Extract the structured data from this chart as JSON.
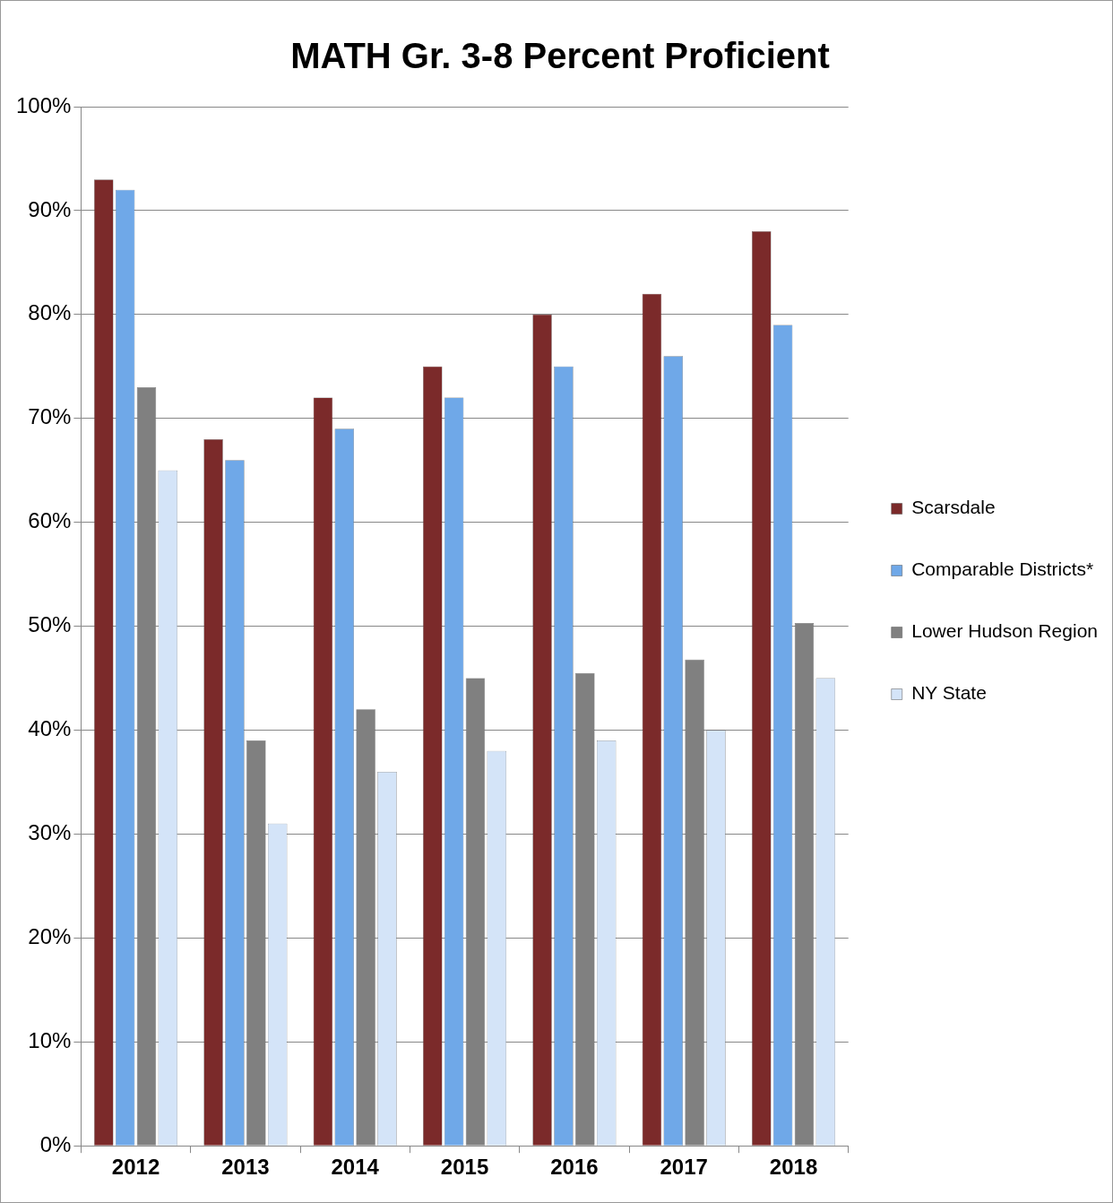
{
  "chart_data": {
    "type": "bar",
    "title": "MATH Gr. 3-8 Percent Proficient",
    "categories": [
      "2012",
      "2013",
      "2014",
      "2015",
      "2016",
      "2017",
      "2018"
    ],
    "series": [
      {
        "name": "Scarsdale",
        "color": "#7b2a2a",
        "values": [
          93,
          68,
          72,
          75,
          80,
          82,
          88
        ]
      },
      {
        "name": "Comparable Districts*",
        "color": "#6fa8e8",
        "values": [
          92,
          66,
          69,
          72,
          75,
          76,
          79
        ]
      },
      {
        "name": "Lower Hudson Region",
        "color": "#808080",
        "values": [
          73,
          39,
          42,
          45,
          45.5,
          46.8,
          50.3
        ]
      },
      {
        "name": "NY State",
        "color": "#d4e4f8",
        "values": [
          65,
          31,
          36,
          38,
          39,
          40,
          45
        ]
      }
    ],
    "ylim": [
      0,
      100
    ],
    "yticks": [
      {
        "value": 0,
        "label": "0%"
      },
      {
        "value": 10,
        "label": "10%"
      },
      {
        "value": 20,
        "label": "20%"
      },
      {
        "value": 30,
        "label": "30%"
      },
      {
        "value": 40,
        "label": "40%"
      },
      {
        "value": 50,
        "label": "50%"
      },
      {
        "value": 60,
        "label": "60%"
      },
      {
        "value": 70,
        "label": "70%"
      },
      {
        "value": 80,
        "label": "80%"
      },
      {
        "value": 90,
        "label": "90%"
      },
      {
        "value": 100,
        "label": "100%"
      }
    ],
    "grid": "y",
    "legend": "right"
  }
}
